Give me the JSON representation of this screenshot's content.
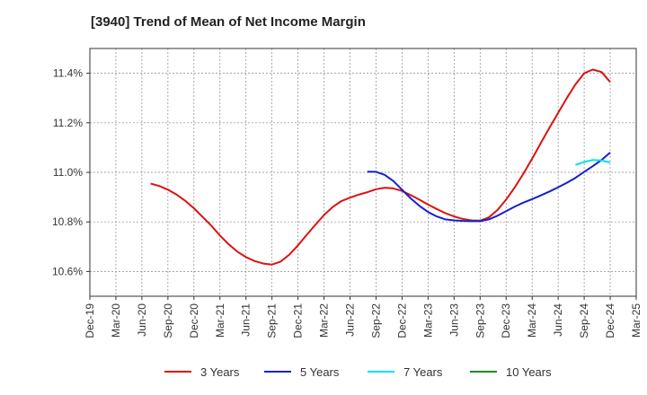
{
  "chart_data": {
    "type": "line",
    "title": "[3940]  Trend of Mean of Net Income Margin",
    "xlabel": "",
    "ylabel": "",
    "x_ticks": [
      "Dec-19",
      "Mar-20",
      "Jun-20",
      "Sep-20",
      "Dec-20",
      "Mar-21",
      "Jun-21",
      "Sep-21",
      "Dec-21",
      "Mar-22",
      "Jun-22",
      "Sep-22",
      "Dec-22",
      "Mar-23",
      "Jun-23",
      "Sep-23",
      "Dec-23",
      "Mar-24",
      "Jun-24",
      "Sep-24",
      "Dec-24",
      "Mar-25"
    ],
    "y_ticks": [
      "10.6%",
      "10.8%",
      "11.0%",
      "11.2%",
      "11.4%"
    ],
    "y_tick_values": [
      10.6,
      10.8,
      11.0,
      11.2,
      11.4
    ],
    "ylim": [
      10.5,
      11.5
    ],
    "grid": true,
    "legend_position": "bottom",
    "series": [
      {
        "name": "3 Years",
        "color": "#dd1111",
        "points": [
          [
            "2020-07",
            10.955
          ],
          [
            "2020-08",
            10.945
          ],
          [
            "2020-09",
            10.93
          ],
          [
            "2020-10",
            10.91
          ],
          [
            "2020-11",
            10.885
          ],
          [
            "2020-12",
            10.855
          ],
          [
            "2021-01",
            10.82
          ],
          [
            "2021-02",
            10.785
          ],
          [
            "2021-03",
            10.745
          ],
          [
            "2021-04",
            10.71
          ],
          [
            "2021-05",
            10.68
          ],
          [
            "2021-06",
            10.658
          ],
          [
            "2021-07",
            10.642
          ],
          [
            "2021-08",
            10.632
          ],
          [
            "2021-09",
            10.628
          ],
          [
            "2021-10",
            10.64
          ],
          [
            "2021-11",
            10.668
          ],
          [
            "2021-12",
            10.705
          ],
          [
            "2022-01",
            10.748
          ],
          [
            "2022-02",
            10.788
          ],
          [
            "2022-03",
            10.828
          ],
          [
            "2022-04",
            10.86
          ],
          [
            "2022-05",
            10.884
          ],
          [
            "2022-06",
            10.898
          ],
          [
            "2022-07",
            10.91
          ],
          [
            "2022-08",
            10.92
          ],
          [
            "2022-09",
            10.932
          ],
          [
            "2022-10",
            10.938
          ],
          [
            "2022-11",
            10.935
          ],
          [
            "2022-12",
            10.925
          ],
          [
            "2023-01",
            10.908
          ],
          [
            "2023-02",
            10.89
          ],
          [
            "2023-03",
            10.87
          ],
          [
            "2023-04",
            10.852
          ],
          [
            "2023-05",
            10.835
          ],
          [
            "2023-06",
            10.822
          ],
          [
            "2023-07",
            10.812
          ],
          [
            "2023-08",
            10.806
          ],
          [
            "2023-09",
            10.805
          ],
          [
            "2023-10",
            10.818
          ],
          [
            "2023-11",
            10.848
          ],
          [
            "2023-12",
            10.89
          ],
          [
            "2024-01",
            10.94
          ],
          [
            "2024-02",
            10.995
          ],
          [
            "2024-03",
            11.055
          ],
          [
            "2024-04",
            11.118
          ],
          [
            "2024-05",
            11.18
          ],
          [
            "2024-06",
            11.24
          ],
          [
            "2024-07",
            11.3
          ],
          [
            "2024-08",
            11.355
          ],
          [
            "2024-09",
            11.4
          ],
          [
            "2024-10",
            11.415
          ],
          [
            "2024-11",
            11.405
          ],
          [
            "2024-12",
            11.365
          ]
        ]
      },
      {
        "name": "5 Years",
        "color": "#1122cc",
        "points": [
          [
            "2022-08",
            11.003
          ],
          [
            "2022-09",
            11.002
          ],
          [
            "2022-10",
            10.99
          ],
          [
            "2022-11",
            10.965
          ],
          [
            "2022-12",
            10.93
          ],
          [
            "2023-01",
            10.895
          ],
          [
            "2023-02",
            10.865
          ],
          [
            "2023-03",
            10.84
          ],
          [
            "2023-04",
            10.822
          ],
          [
            "2023-05",
            10.81
          ],
          [
            "2023-06",
            10.806
          ],
          [
            "2023-07",
            10.804
          ],
          [
            "2023-08",
            10.803
          ],
          [
            "2023-09",
            10.803
          ],
          [
            "2023-10",
            10.81
          ],
          [
            "2023-11",
            10.825
          ],
          [
            "2023-12",
            10.843
          ],
          [
            "2024-01",
            10.862
          ],
          [
            "2024-02",
            10.878
          ],
          [
            "2024-03",
            10.892
          ],
          [
            "2024-04",
            10.907
          ],
          [
            "2024-05",
            10.923
          ],
          [
            "2024-06",
            10.94
          ],
          [
            "2024-07",
            10.958
          ],
          [
            "2024-08",
            10.978
          ],
          [
            "2024-09",
            11.002
          ],
          [
            "2024-10",
            11.025
          ],
          [
            "2024-11",
            11.05
          ],
          [
            "2024-12",
            11.08
          ]
        ]
      },
      {
        "name": "7 Years",
        "color": "#00e0ee",
        "points": [
          [
            "2024-08",
            11.03
          ],
          [
            "2024-09",
            11.042
          ],
          [
            "2024-10",
            11.05
          ],
          [
            "2024-11",
            11.048
          ],
          [
            "2024-12",
            11.04
          ]
        ]
      },
      {
        "name": "10 Years",
        "color": "#228822",
        "points": []
      }
    ]
  }
}
